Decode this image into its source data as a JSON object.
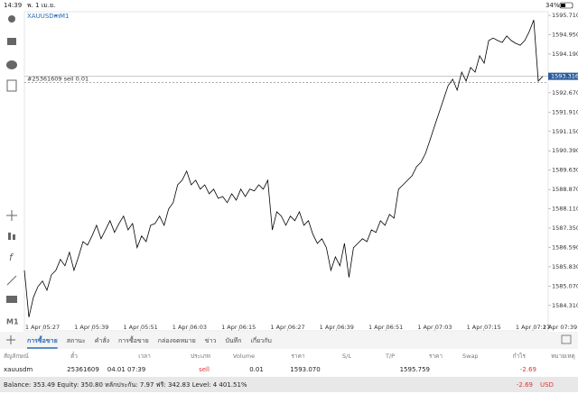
{
  "status_bar": {
    "time": "14:39",
    "date": "พ. 1 เม.ย.",
    "battery": "34%"
  },
  "chart": {
    "symbol": "XAUUSDm",
    "timeframe": "M1",
    "order_label": "#25361609 sell 0.01",
    "toolbar_timeframe": "M1"
  },
  "chart_data": {
    "type": "line",
    "color": "#000000",
    "values": [
      1585.69,
      1583.85,
      1584.63,
      1585.05,
      1585.27,
      1584.91,
      1585.51,
      1585.69,
      1586.12,
      1585.87,
      1586.4,
      1585.69,
      1586.22,
      1586.82,
      1586.68,
      1587.04,
      1587.46,
      1586.93,
      1587.28,
      1587.64,
      1587.18,
      1587.53,
      1587.82,
      1587.28,
      1587.53,
      1586.58,
      1587.04,
      1586.82,
      1587.46,
      1587.53,
      1587.82,
      1587.46,
      1588.1,
      1588.35,
      1589.05,
      1589.23,
      1589.59,
      1589.05,
      1589.23,
      1588.88,
      1589.05,
      1588.7,
      1588.88,
      1588.52,
      1588.59,
      1588.35,
      1588.7,
      1588.45,
      1588.88,
      1588.59,
      1588.88,
      1588.81,
      1589.05,
      1588.88,
      1589.23,
      1587.28,
      1587.99,
      1587.82,
      1587.46,
      1587.82,
      1587.64,
      1587.99,
      1587.46,
      1587.64,
      1587.11,
      1586.75,
      1586.93,
      1586.58,
      1585.69,
      1586.22,
      1585.87,
      1586.75,
      1585.41,
      1586.58,
      1586.75,
      1586.93,
      1586.82,
      1587.28,
      1587.18,
      1587.64,
      1587.46,
      1587.89,
      1587.74,
      1588.88,
      1589.05,
      1589.23,
      1589.41,
      1589.76,
      1589.94,
      1590.29,
      1590.82,
      1591.36,
      1591.89,
      1592.42,
      1592.95,
      1593.2,
      1592.77,
      1593.48,
      1593.13,
      1593.66,
      1593.48,
      1594.12,
      1593.83,
      1594.72,
      1594.82,
      1594.72,
      1594.65,
      1594.9,
      1594.72,
      1594.61,
      1594.54,
      1594.72,
      1595.07,
      1595.53,
      1593.13,
      1593.316
    ],
    "ylim": [
      1583.7,
      1595.89
    ],
    "yticks": [
      {
        "value": 1595.71,
        "label": "1595.710"
      },
      {
        "value": 1594.95,
        "label": "1594.950"
      },
      {
        "value": 1594.19,
        "label": "1594.190"
      },
      {
        "value": 1592.67,
        "label": "1592.670"
      },
      {
        "value": 1591.91,
        "label": "1591.910"
      },
      {
        "value": 1591.15,
        "label": "1591.150"
      },
      {
        "value": 1590.39,
        "label": "1590.390"
      },
      {
        "value": 1589.63,
        "label": "1589.630"
      },
      {
        "value": 1588.87,
        "label": "1588.870"
      },
      {
        "value": 1588.11,
        "label": "1588.110"
      },
      {
        "value": 1587.35,
        "label": "1587.350"
      },
      {
        "value": 1586.59,
        "label": "1586.590"
      },
      {
        "value": 1585.83,
        "label": "1585.830"
      },
      {
        "value": 1585.07,
        "label": "1585.070"
      },
      {
        "value": 1584.31,
        "label": "1584.310"
      }
    ],
    "x_labels": [
      "1 Apr 05:27",
      "1 Apr 05:39",
      "1 Apr 05:51",
      "1 Apr 06:03",
      "1 Apr 06:15",
      "1 Apr 06:27",
      "1 Apr 06:39",
      "1 Apr 06:51",
      "1 Apr 07:03",
      "1 Apr 07:15",
      "1 Apr 07:27",
      "1 Apr 07:39"
    ],
    "bid": {
      "value": 1593.316,
      "label": "1593.316"
    },
    "order_price": 1593.07
  },
  "tabs": [
    "การซื้อขาย",
    "สถานะ",
    "คำสั่ง",
    "การซื้อขาย",
    "กล่องจดหมาย",
    "ข่าว",
    "บันทึก",
    "เกี่ยวกับ"
  ],
  "table": {
    "headers": [
      "สัญลักษณ์",
      "ตั๋ว",
      "เวลา",
      "ประเภท",
      "Volume",
      "ราคา",
      "S/L",
      "T/P",
      "ราคา",
      "Swap",
      "กำไร",
      "หมายเหตุ"
    ],
    "row": {
      "symbol": "xauusdm",
      "ticket": "25361609",
      "time": "04.01 07:39",
      "type": "sell",
      "volume": "0.01",
      "open_price": "1593.070",
      "price": "1595.759",
      "profit": "-2.69"
    }
  },
  "balance": {
    "text": "Balance: 353.49 Equity: 350.80 หลักประกัน: 7.97 ฟรี: 342.83 Level: 4 401.51%",
    "profit": "-2.69",
    "currency": "USD"
  }
}
